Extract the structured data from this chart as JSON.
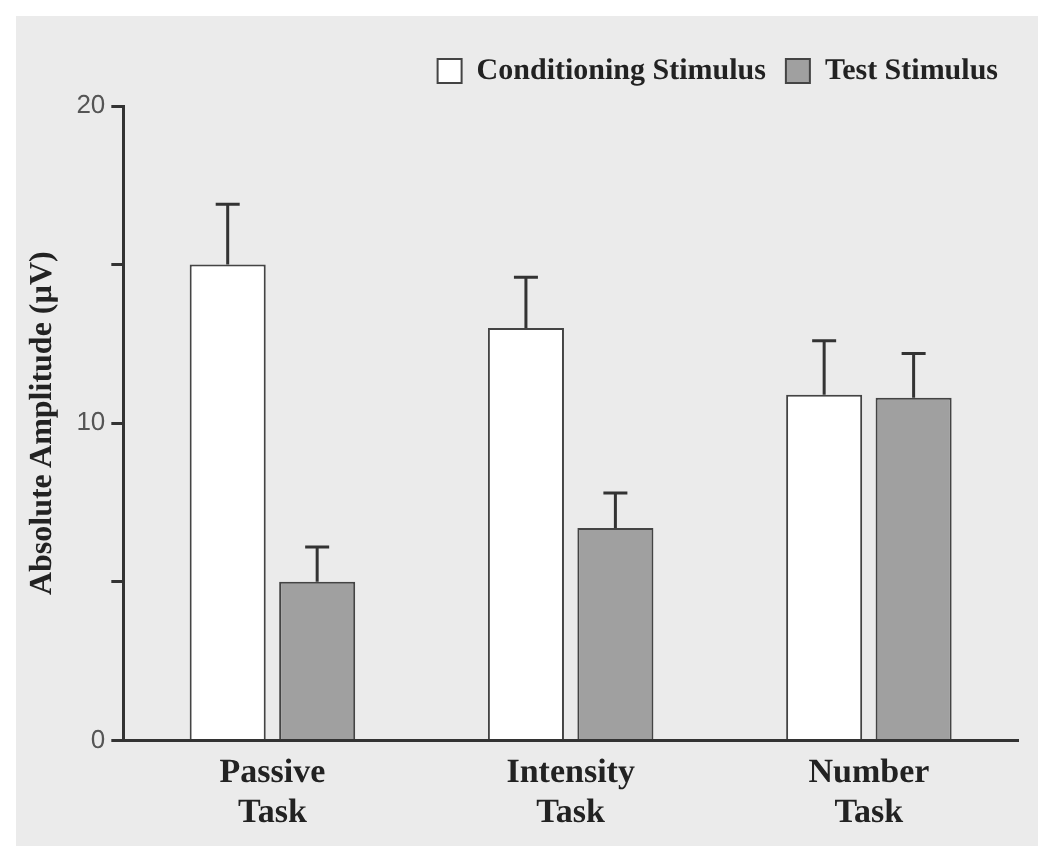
{
  "chart_data": {
    "type": "bar",
    "ylabel": "Absolute Amplitude (µV)",
    "categories": [
      "Passive Task",
      "Intensity Task",
      "Number Task"
    ],
    "series": [
      {
        "name": "Conditioning Stimulus",
        "color": "#ffffff",
        "values": [
          15.0,
          13.0,
          10.9
        ],
        "errors": [
          [
            15.0,
            16.9
          ],
          [
            13.0,
            14.6
          ],
          [
            10.9,
            12.6
          ]
        ]
      },
      {
        "name": "Test Stimulus",
        "color": "#a0a0a0",
        "values": [
          5.0,
          6.7,
          10.8
        ],
        "errors": [
          [
            5.0,
            6.1
          ],
          [
            6.7,
            7.8
          ],
          [
            10.8,
            12.2
          ]
        ]
      }
    ],
    "ylim": [
      0,
      20
    ],
    "yticks": [
      0,
      {
        "value": 5,
        "label": null
      },
      10,
      {
        "value": 15,
        "label": null
      },
      20
    ],
    "grid": false,
    "legend": "top right"
  }
}
